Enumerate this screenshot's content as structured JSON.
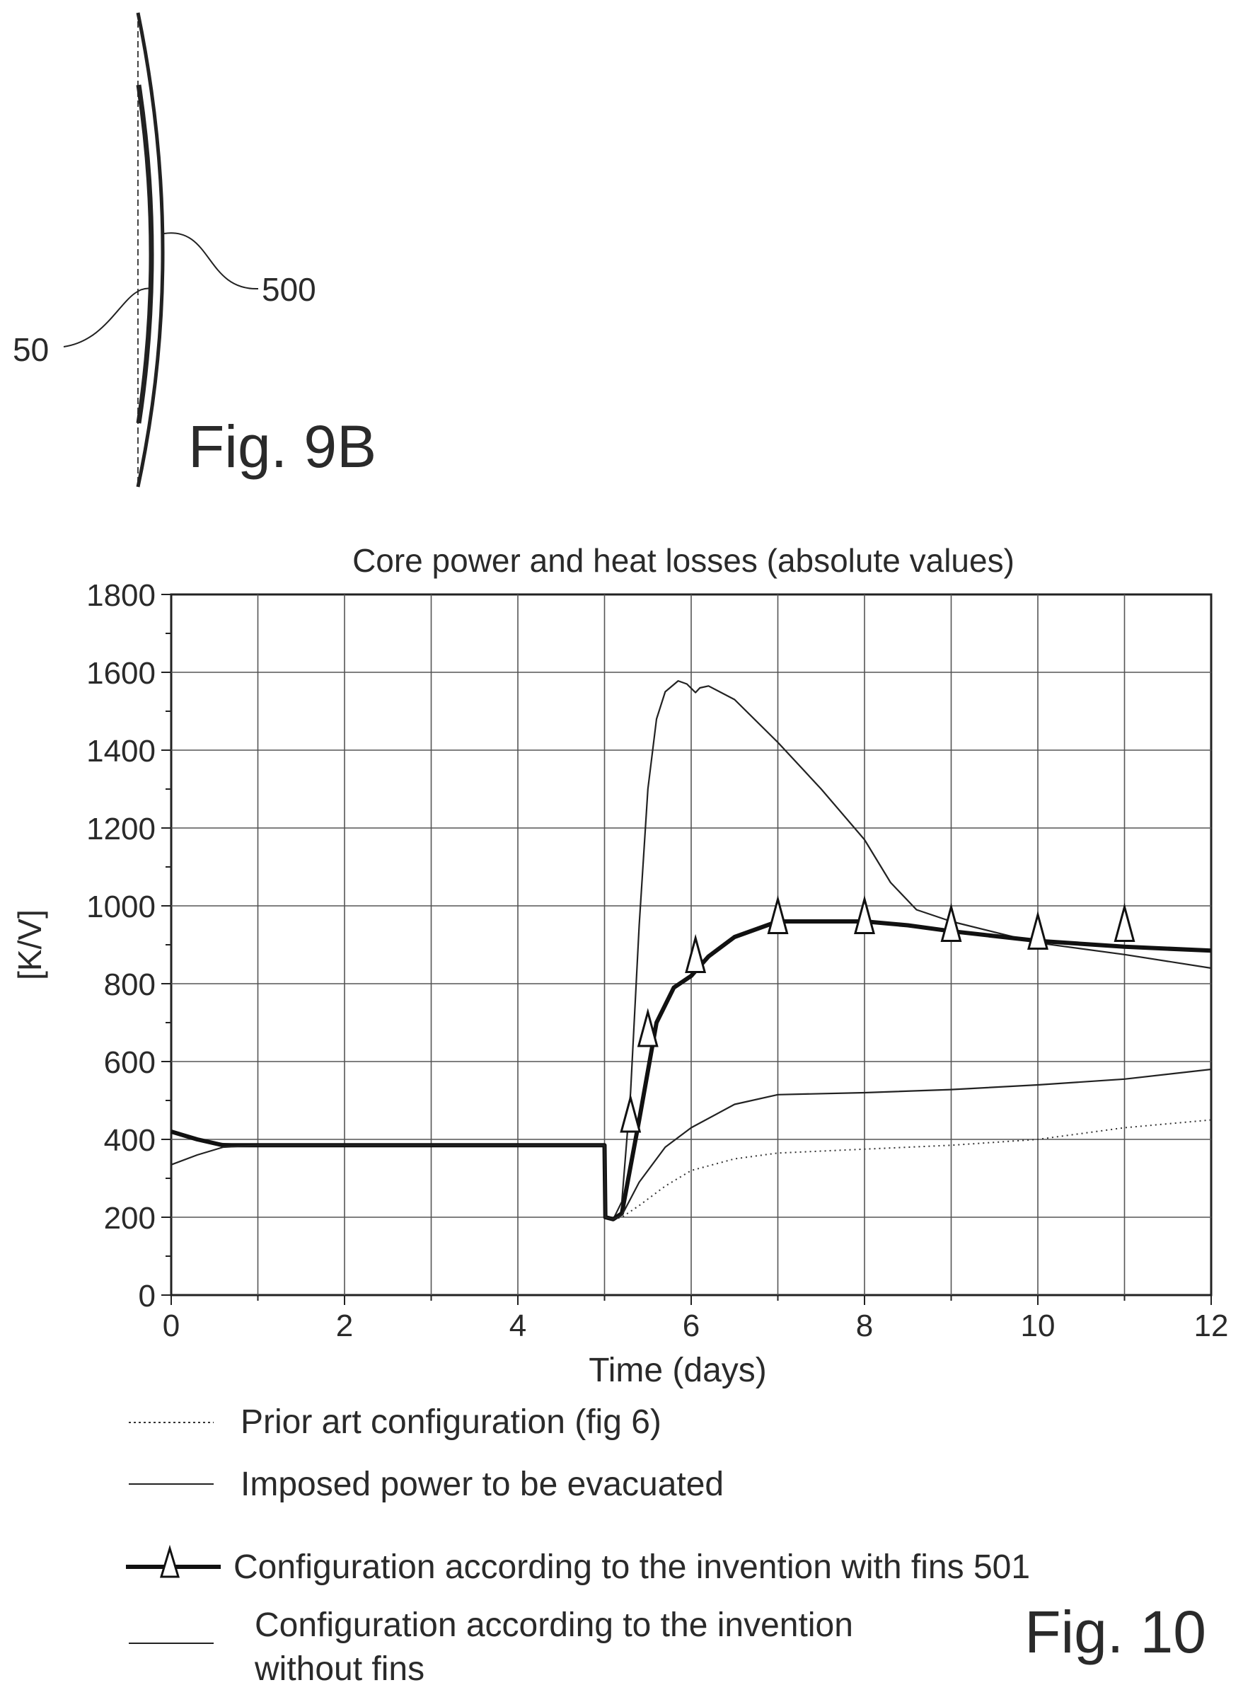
{
  "fig9b": {
    "label": "Fig. 9B",
    "ref_outer": "500",
    "ref_inner": "50"
  },
  "fig10": {
    "label": "Fig. 10"
  },
  "chart_data": {
    "type": "line",
    "title": "Core power and heat losses (absolute values)",
    "xlabel": "Time (days)",
    "ylabel": "[K/V]",
    "xlim": [
      0,
      12
    ],
    "ylim": [
      0,
      1800
    ],
    "xticks": [
      0,
      2,
      4,
      6,
      8,
      10,
      12
    ],
    "yticks": [
      0,
      200,
      400,
      600,
      800,
      1000,
      1200,
      1400,
      1600,
      1800
    ],
    "grid": true,
    "legend_position": "below",
    "series": [
      {
        "name": "Prior art configuration (fig 6)",
        "style": "dotted",
        "points": [
          [
            0,
            420
          ],
          [
            0.3,
            400
          ],
          [
            0.6,
            388
          ],
          [
            1,
            385
          ],
          [
            2,
            385
          ],
          [
            3,
            385
          ],
          [
            4,
            385
          ],
          [
            5,
            385
          ],
          [
            5.01,
            200
          ],
          [
            5.1,
            195
          ],
          [
            5.2,
            200
          ],
          [
            5.4,
            230
          ],
          [
            5.7,
            280
          ],
          [
            6,
            320
          ],
          [
            6.5,
            350
          ],
          [
            7,
            365
          ],
          [
            8,
            375
          ],
          [
            9,
            385
          ],
          [
            10,
            400
          ],
          [
            11,
            430
          ],
          [
            12,
            450
          ]
        ]
      },
      {
        "name": "Imposed power to be evacuated",
        "style": "thin",
        "points": [
          [
            0,
            420
          ],
          [
            0.5,
            390
          ],
          [
            1,
            385
          ],
          [
            5,
            385
          ],
          [
            5.01,
            200
          ],
          [
            5.1,
            195
          ],
          [
            5.2,
            240
          ],
          [
            5.3,
            520
          ],
          [
            5.4,
            950
          ],
          [
            5.5,
            1300
          ],
          [
            5.6,
            1480
          ],
          [
            5.7,
            1550
          ],
          [
            5.85,
            1578
          ],
          [
            5.95,
            1570
          ],
          [
            6.05,
            1548
          ],
          [
            6.1,
            1560
          ],
          [
            6.2,
            1565
          ],
          [
            6.5,
            1530
          ],
          [
            7,
            1420
          ],
          [
            7.5,
            1300
          ],
          [
            8,
            1170
          ],
          [
            8.3,
            1060
          ],
          [
            8.6,
            990
          ],
          [
            9,
            960
          ],
          [
            10,
            905
          ],
          [
            11,
            875
          ],
          [
            12,
            840
          ]
        ]
      },
      {
        "name": "Configuration according to the invention with fins 501",
        "style": "thick",
        "markers": [
          [
            5.3,
            460
          ],
          [
            5.5,
            680
          ],
          [
            6.05,
            870
          ],
          [
            7,
            970
          ],
          [
            8,
            970
          ],
          [
            9,
            950
          ],
          [
            10,
            930
          ],
          [
            11,
            950
          ]
        ],
        "points": [
          [
            0,
            420
          ],
          [
            0.3,
            400
          ],
          [
            0.6,
            385
          ],
          [
            1,
            385
          ],
          [
            5,
            385
          ],
          [
            5.01,
            200
          ],
          [
            5.1,
            195
          ],
          [
            5.2,
            210
          ],
          [
            5.4,
            450
          ],
          [
            5.6,
            700
          ],
          [
            5.8,
            790
          ],
          [
            6,
            820
          ],
          [
            6.2,
            870
          ],
          [
            6.5,
            920
          ],
          [
            7,
            960
          ],
          [
            7.5,
            960
          ],
          [
            8,
            960
          ],
          [
            8.5,
            950
          ],
          [
            9,
            935
          ],
          [
            10,
            910
          ],
          [
            11,
            895
          ],
          [
            12,
            885
          ]
        ]
      },
      {
        "name": "Configuration according to the invention without fins",
        "style": "thin",
        "points": [
          [
            0,
            335
          ],
          [
            0.3,
            360
          ],
          [
            0.6,
            380
          ],
          [
            1,
            385
          ],
          [
            5,
            385
          ],
          [
            5.01,
            200
          ],
          [
            5.1,
            195
          ],
          [
            5.2,
            205
          ],
          [
            5.4,
            290
          ],
          [
            5.7,
            380
          ],
          [
            6,
            430
          ],
          [
            6.5,
            490
          ],
          [
            7,
            515
          ],
          [
            8,
            520
          ],
          [
            9,
            528
          ],
          [
            10,
            540
          ],
          [
            11,
            555
          ],
          [
            12,
            580
          ]
        ]
      }
    ]
  }
}
